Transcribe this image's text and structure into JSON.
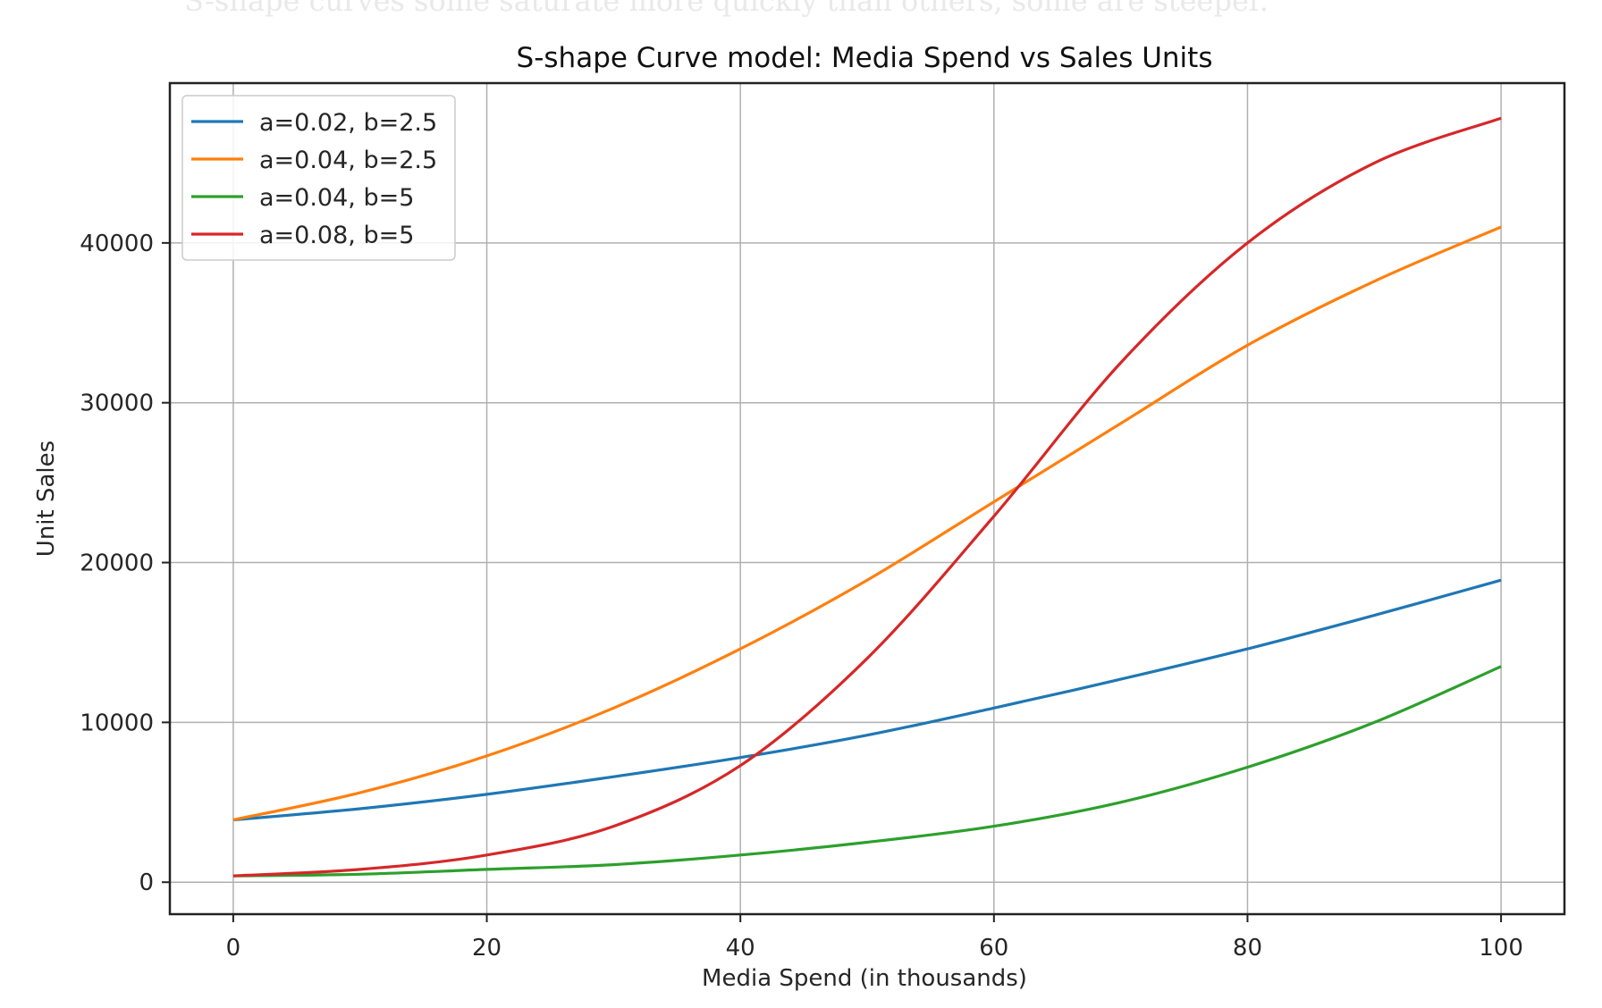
{
  "caption": "S-shape curves some saturate more quickly than others, some are steeper.",
  "chart_data": {
    "type": "line",
    "title": "S-shape Curve model: Media Spend vs Sales Units",
    "xlabel": "Media Spend (in thousands)",
    "ylabel": "Unit Sales",
    "xlim": [
      -5,
      105
    ],
    "ylim": [
      -2000,
      50000
    ],
    "xticks": [
      0,
      20,
      40,
      60,
      80,
      100
    ],
    "yticks": [
      0,
      10000,
      20000,
      30000,
      40000
    ],
    "grid": true,
    "legend_placement": "top-left",
    "x": [
      0,
      10,
      20,
      30,
      40,
      50,
      60,
      70,
      80,
      90,
      100
    ],
    "series": [
      {
        "name": "a=0.02, b=2.5",
        "color": "#1f77b4",
        "values": [
          3900,
          4600,
          5500,
          6600,
          7800,
          9200,
          10900,
          12700,
          14600,
          16700,
          18900
        ]
      },
      {
        "name": "a=0.04, b=2.5",
        "color": "#ff7f0e",
        "values": [
          3900,
          5600,
          7900,
          10900,
          14600,
          18900,
          23800,
          28700,
          33600,
          37600,
          41000
        ]
      },
      {
        "name": "a=0.04, b=5",
        "color": "#2ca02c",
        "values": [
          400,
          500,
          800,
          1100,
          1700,
          2500,
          3500,
          5000,
          7200,
          10000,
          13500
        ]
      },
      {
        "name": "a=0.08, b=5",
        "color": "#d62728",
        "values": [
          400,
          800,
          1700,
          3500,
          7300,
          14000,
          22900,
          32500,
          40000,
          45000,
          47800
        ]
      }
    ]
  }
}
